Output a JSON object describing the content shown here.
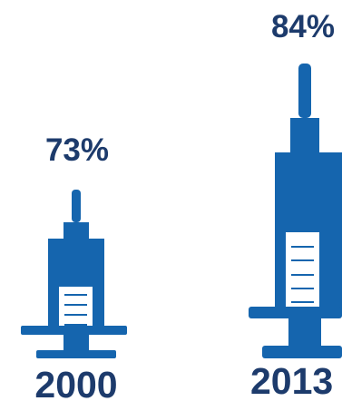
{
  "chart_data": {
    "type": "bar",
    "categories": [
      "2000",
      "2013"
    ],
    "values": [
      73,
      84
    ],
    "value_labels": [
      "73%",
      "84%"
    ],
    "mark": "syringe-pictogram",
    "colors": {
      "syringe": "#1565ae",
      "window": "#ffffff",
      "text": "#1d3b6c"
    }
  }
}
